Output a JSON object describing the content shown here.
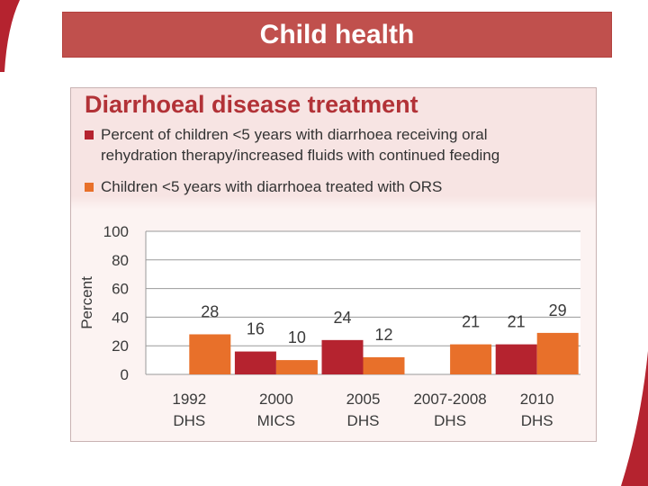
{
  "header": {
    "title": "Child health"
  },
  "chart_data": {
    "type": "bar",
    "title": "Diarrhoeal disease treatment",
    "ylabel": "Percent",
    "xlabel": "",
    "ylim": [
      0,
      100
    ],
    "yticks": [
      "100",
      "80",
      "60",
      "40",
      "20",
      "0"
    ],
    "yticks_values": [
      100,
      80,
      60,
      40,
      20,
      0
    ],
    "categories": [
      [
        "1992",
        "DHS"
      ],
      [
        "2000",
        "MICS"
      ],
      [
        "2005",
        "DHS"
      ],
      [
        "2007-2008",
        "DHS"
      ],
      [
        "2010",
        "DHS"
      ]
    ],
    "series": [
      {
        "name": "Percent of children <5 years with diarrhoea receiving oral rehydration therapy/increased fluids with continued feeding",
        "legend_lines": [
          "Percent of children <5 years with diarrhoea receiving oral",
          "rehydration therapy/increased fluids with continued feeding"
        ],
        "color": "#b5232f",
        "values": [
          null,
          16,
          24,
          null,
          21
        ]
      },
      {
        "name": "Children <5 years with diarrhoea treated with ORS",
        "legend_lines": [
          "Children <5 years with diarrhoea treated with ORS"
        ],
        "color": "#e8702a",
        "values": [
          28,
          10,
          12,
          21,
          29
        ]
      }
    ],
    "grid": true
  }
}
